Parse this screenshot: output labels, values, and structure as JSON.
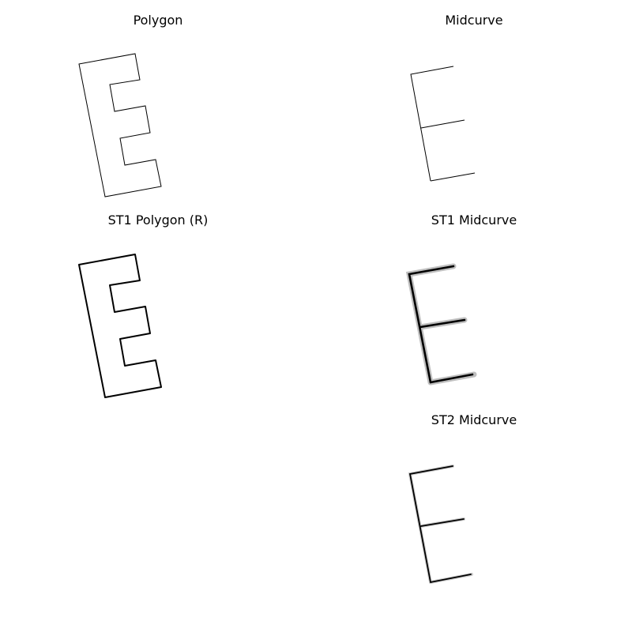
{
  "figure": {
    "panels": [
      {
        "key": "polygon",
        "title": "Polygon"
      },
      {
        "key": "midcurve",
        "title": "Midcurve"
      },
      {
        "key": "st1_polygon",
        "title": "ST1 Polygon (R)"
      },
      {
        "key": "st1_midcurve",
        "title": "ST1 Midcurve"
      },
      {
        "key": "st2_midcurve",
        "title": "ST2 Midcurve"
      }
    ],
    "stroke_color": "#000000"
  }
}
